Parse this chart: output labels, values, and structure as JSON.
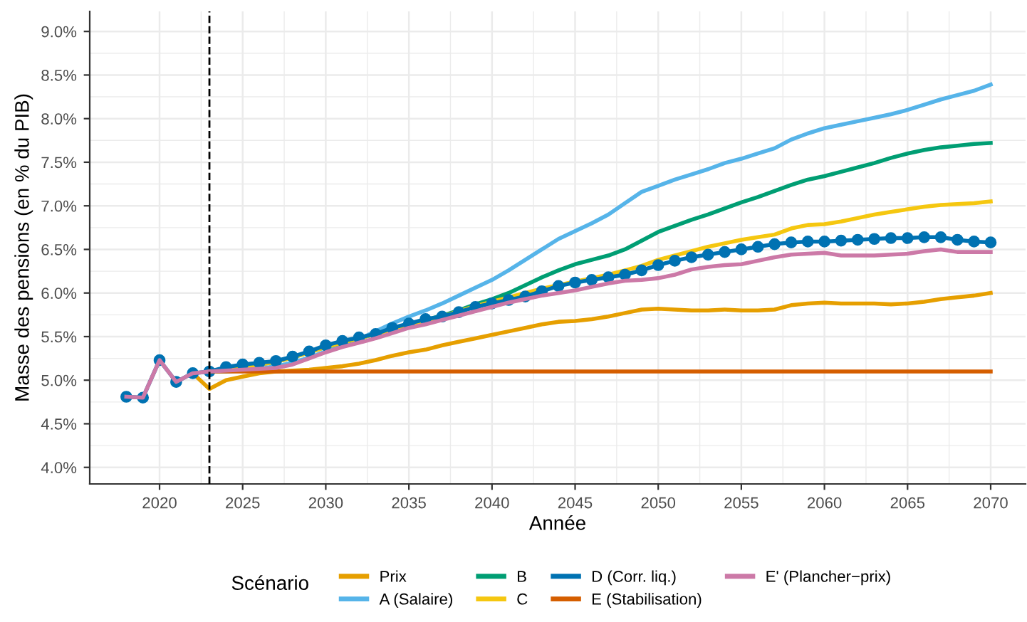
{
  "chart_data": {
    "type": "line",
    "xlabel": "Année",
    "ylabel": "Masse des pensions (en % du PIB)",
    "legend_title": "Scénario",
    "legend": "bottom",
    "grid": true,
    "line_style": "solid",
    "x": [
      2018,
      2019,
      2020,
      2021,
      2022,
      2023,
      2024,
      2025,
      2026,
      2027,
      2028,
      2029,
      2030,
      2031,
      2032,
      2033,
      2034,
      2035,
      2036,
      2037,
      2038,
      2039,
      2040,
      2041,
      2042,
      2043,
      2044,
      2045,
      2046,
      2047,
      2048,
      2049,
      2050,
      2051,
      2052,
      2053,
      2054,
      2055,
      2056,
      2057,
      2058,
      2059,
      2060,
      2061,
      2062,
      2063,
      2064,
      2065,
      2066,
      2067,
      2068,
      2069,
      2070
    ],
    "xlim": [
      2015.8,
      2072.1
    ],
    "xticks": [
      2020,
      2025,
      2030,
      2035,
      2040,
      2045,
      2050,
      2055,
      2060,
      2065,
      2070
    ],
    "ylim": [
      3.81,
      9.23
    ],
    "yticks": [
      {
        "value": 4.0,
        "label": "4.0%"
      },
      {
        "value": 4.5,
        "label": "4.5%"
      },
      {
        "value": 5.0,
        "label": "5.0%"
      },
      {
        "value": 5.5,
        "label": "5.5%"
      },
      {
        "value": 6.0,
        "label": "6.0%"
      },
      {
        "value": 6.5,
        "label": "6.5%"
      },
      {
        "value": 7.0,
        "label": "7.0%"
      },
      {
        "value": 7.5,
        "label": "7.5%"
      },
      {
        "value": 8.0,
        "label": "8.0%"
      },
      {
        "value": 8.5,
        "label": "8.5%"
      },
      {
        "value": 9.0,
        "label": "9.0%"
      }
    ],
    "ref_lines": [
      {
        "axis": "x",
        "value": 2023,
        "label": null,
        "color": "#000000",
        "line_style": "dashed"
      }
    ],
    "series": [
      {
        "name": "Prix",
        "color": "#e69f00",
        "marker": "none",
        "values": [
          null,
          null,
          null,
          null,
          5.08,
          4.9,
          5.0,
          5.04,
          5.08,
          5.1,
          5.11,
          5.12,
          5.14,
          5.16,
          5.19,
          5.23,
          5.28,
          5.32,
          5.35,
          5.4,
          5.44,
          5.48,
          5.52,
          5.56,
          5.6,
          5.64,
          5.67,
          5.68,
          5.7,
          5.73,
          5.77,
          5.81,
          5.82,
          5.81,
          5.8,
          5.8,
          5.81,
          5.8,
          5.8,
          5.81,
          5.86,
          5.88,
          5.89,
          5.88,
          5.88,
          5.88,
          5.87,
          5.88,
          5.9,
          5.93,
          5.95,
          5.97,
          6.0
        ]
      },
      {
        "name": "A (Salaire)",
        "color": "#56b4e9",
        "marker": "none",
        "values": [
          null,
          null,
          null,
          null,
          null,
          5.1,
          5.1,
          5.11,
          5.13,
          5.16,
          5.2,
          5.26,
          5.33,
          5.4,
          5.47,
          5.56,
          5.65,
          5.73,
          5.8,
          5.88,
          5.97,
          6.06,
          6.15,
          6.26,
          6.38,
          6.5,
          6.62,
          6.71,
          6.8,
          6.9,
          7.03,
          7.16,
          7.23,
          7.3,
          7.36,
          7.42,
          7.49,
          7.54,
          7.6,
          7.66,
          7.76,
          7.83,
          7.89,
          7.93,
          7.97,
          8.01,
          8.05,
          8.1,
          8.16,
          8.22,
          8.27,
          8.32,
          8.39
        ]
      },
      {
        "name": "B",
        "color": "#009e73",
        "marker": "none",
        "values": [
          null,
          null,
          null,
          null,
          null,
          null,
          null,
          5.15,
          5.18,
          5.21,
          5.26,
          5.32,
          5.38,
          5.43,
          5.48,
          5.53,
          5.59,
          5.64,
          5.69,
          5.74,
          5.8,
          5.87,
          5.93,
          6.0,
          6.09,
          6.18,
          6.26,
          6.33,
          6.38,
          6.43,
          6.5,
          6.6,
          6.7,
          6.77,
          6.84,
          6.9,
          6.97,
          7.04,
          7.1,
          7.17,
          7.24,
          7.3,
          7.34,
          7.39,
          7.44,
          7.49,
          7.55,
          7.6,
          7.64,
          7.67,
          7.69,
          7.71,
          7.72
        ]
      },
      {
        "name": "C",
        "color": "#f5c710",
        "marker": "none",
        "values": [
          null,
          null,
          null,
          null,
          null,
          5.1,
          5.13,
          5.15,
          5.18,
          5.21,
          5.26,
          5.32,
          5.38,
          5.43,
          5.48,
          5.53,
          5.58,
          5.63,
          5.68,
          5.73,
          5.79,
          5.85,
          5.9,
          5.95,
          6.0,
          6.05,
          6.09,
          6.13,
          6.17,
          6.21,
          6.26,
          6.31,
          6.38,
          6.43,
          6.48,
          6.53,
          6.57,
          6.61,
          6.64,
          6.67,
          6.74,
          6.78,
          6.79,
          6.82,
          6.86,
          6.9,
          6.93,
          6.96,
          6.99,
          7.01,
          7.02,
          7.03,
          7.05
        ]
      },
      {
        "name": "D (Corr. liq.)",
        "color": "#0072b2",
        "marker": "circle",
        "values": [
          4.81,
          4.8,
          5.23,
          4.98,
          5.08,
          5.1,
          5.15,
          5.18,
          5.2,
          5.22,
          5.27,
          5.33,
          5.4,
          5.45,
          5.49,
          5.53,
          5.6,
          5.65,
          5.7,
          5.73,
          5.78,
          5.84,
          5.88,
          5.92,
          5.96,
          6.02,
          6.08,
          6.12,
          6.15,
          6.18,
          6.21,
          6.26,
          6.32,
          6.37,
          6.41,
          6.44,
          6.47,
          6.5,
          6.53,
          6.56,
          6.58,
          6.59,
          6.59,
          6.6,
          6.61,
          6.62,
          6.63,
          6.63,
          6.64,
          6.64,
          6.61,
          6.59,
          6.58
        ]
      },
      {
        "name": "E (Stabilisation)",
        "color": "#d55e00",
        "marker": "none",
        "values": [
          null,
          null,
          null,
          null,
          null,
          5.1,
          5.1,
          5.1,
          5.1,
          5.1,
          5.1,
          5.1,
          5.1,
          5.1,
          5.1,
          5.1,
          5.1,
          5.1,
          5.1,
          5.1,
          5.1,
          5.1,
          5.1,
          5.1,
          5.1,
          5.1,
          5.1,
          5.1,
          5.1,
          5.1,
          5.1,
          5.1,
          5.1,
          5.1,
          5.1,
          5.1,
          5.1,
          5.1,
          5.1,
          5.1,
          5.1,
          5.1,
          5.1,
          5.1,
          5.1,
          5.1,
          5.1,
          5.1,
          5.1,
          5.1,
          5.1,
          5.1,
          5.1
        ]
      },
      {
        "name": "E' (Plancher−prix)",
        "color": "#cc79a7",
        "marker": "none",
        "values": [
          4.81,
          4.8,
          5.23,
          4.98,
          5.08,
          5.1,
          5.11,
          5.12,
          5.13,
          5.14,
          5.18,
          5.25,
          5.32,
          5.38,
          5.43,
          5.48,
          5.54,
          5.6,
          5.64,
          5.69,
          5.74,
          5.79,
          5.84,
          5.89,
          5.93,
          5.97,
          6.0,
          6.03,
          6.07,
          6.11,
          6.14,
          6.15,
          6.17,
          6.21,
          6.27,
          6.3,
          6.32,
          6.33,
          6.37,
          6.41,
          6.44,
          6.45,
          6.46,
          6.43,
          6.43,
          6.43,
          6.44,
          6.45,
          6.48,
          6.5,
          6.47,
          6.47,
          6.47
        ]
      }
    ]
  }
}
